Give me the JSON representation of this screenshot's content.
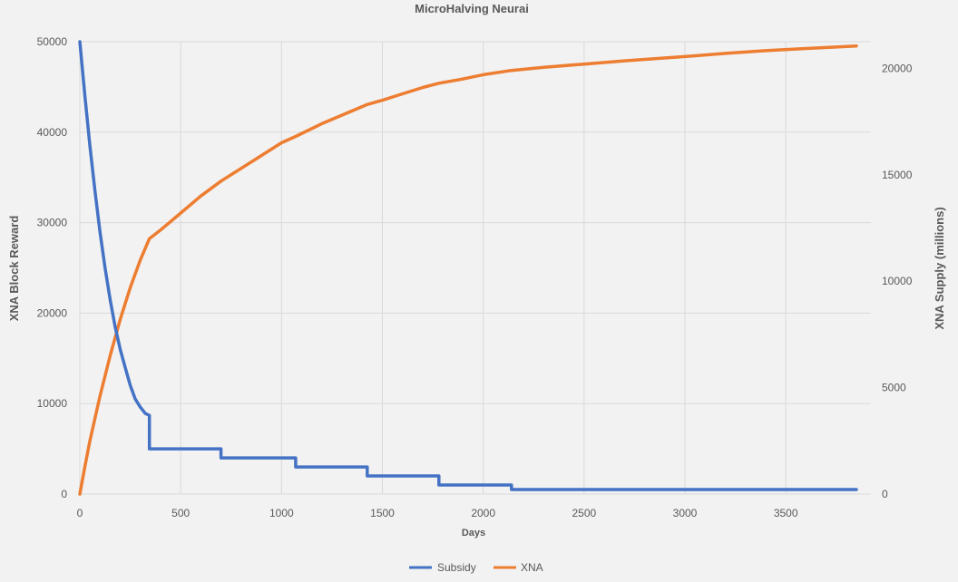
{
  "chart_data": {
    "type": "line",
    "title": "MicroHalving Neurai",
    "xlabel": "Days",
    "ylabel_left": "XNA Block Reward",
    "ylabel_right": "XNA Supply (millions)",
    "xlim": [
      0,
      3850
    ],
    "ylim_left": [
      0,
      50000
    ],
    "ylim_right": [
      0,
      21250
    ],
    "x_ticks": [
      "0",
      "500",
      "1000",
      "1500",
      "2000",
      "2500",
      "3000",
      "3500"
    ],
    "y_left_ticks": [
      "0",
      "10000",
      "20000",
      "30000",
      "40000",
      "50000"
    ],
    "y_right_ticks": [
      "0",
      "5000",
      "10000",
      "15000",
      "20000"
    ],
    "grid": true,
    "legend_position": "bottom",
    "series": [
      {
        "name": "Subsidy",
        "axis": "left",
        "color": "#4472c4",
        "x": [
          0,
          25,
          50,
          75,
          100,
          125,
          150,
          175,
          200,
          225,
          250,
          275,
          300,
          325,
          345,
          345,
          700,
          700,
          1070,
          1070,
          1425,
          1425,
          1780,
          1780,
          2140,
          2140,
          3850
        ],
        "y": [
          50000,
          44000,
          38500,
          33500,
          29000,
          25000,
          21500,
          18500,
          16000,
          14000,
          12000,
          10500,
          9600,
          8900,
          8700,
          5000,
          5000,
          4000,
          4000,
          3000,
          3000,
          2000,
          2000,
          1000,
          1000,
          500,
          500
        ]
      },
      {
        "name": "XNA",
        "axis": "right",
        "color": "#ed7d31",
        "x": [
          0,
          25,
          50,
          100,
          150,
          200,
          250,
          300,
          345,
          400,
          500,
          600,
          700,
          800,
          900,
          1000,
          1070,
          1200,
          1300,
          1425,
          1500,
          1600,
          1700,
          1780,
          1900,
          2000,
          2140,
          2300,
          2500,
          2700,
          3000,
          3200,
          3400,
          3600,
          3850
        ],
        "y": [
          0,
          1300,
          2500,
          4600,
          6500,
          8200,
          9700,
          11000,
          12000,
          12400,
          13200,
          14000,
          14700,
          15300,
          15900,
          16500,
          16800,
          17400,
          17800,
          18300,
          18500,
          18800,
          19100,
          19300,
          19500,
          19700,
          19900,
          20050,
          20200,
          20350,
          20550,
          20700,
          20830,
          20930,
          21050
        ]
      }
    ]
  }
}
